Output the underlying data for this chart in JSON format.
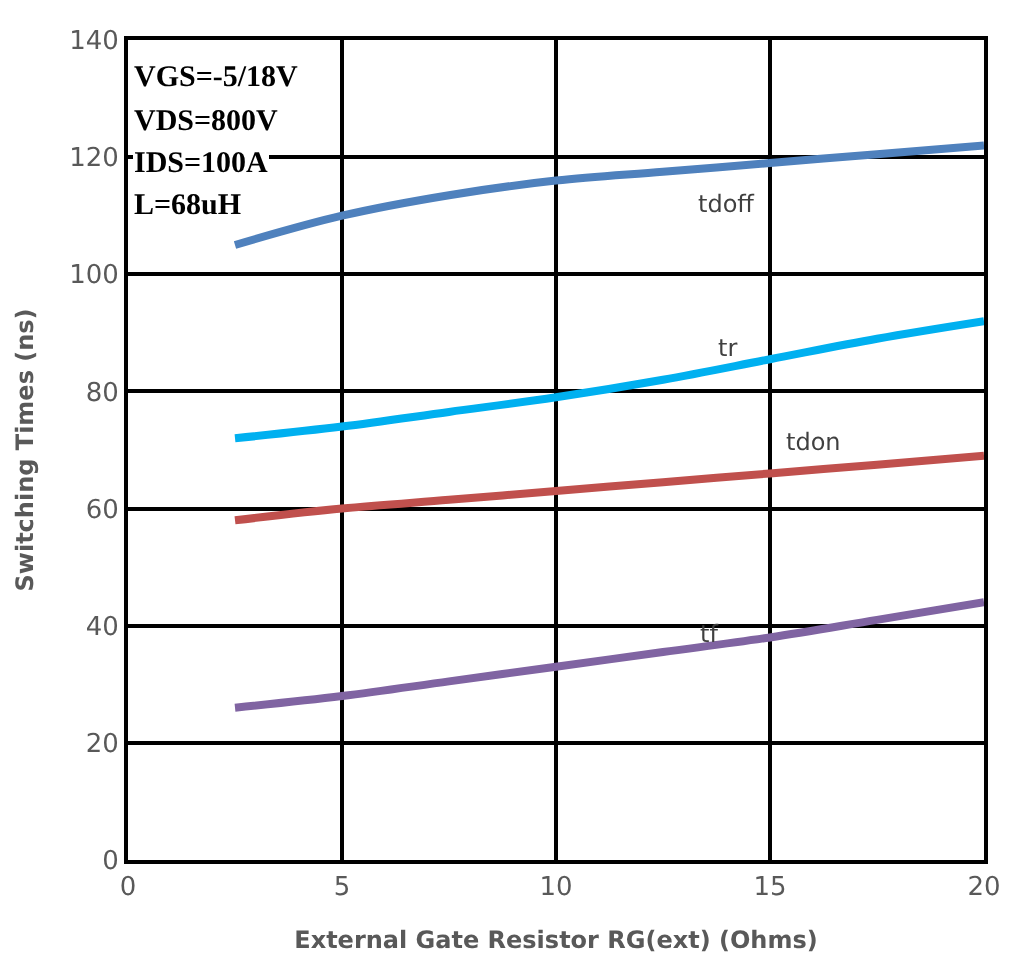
{
  "chart_data": {
    "type": "line",
    "xlabel": "External Gate Resistor RG(ext) (Ohms)",
    "ylabel": "Switching Times (ns)",
    "x": [
      2.5,
      5,
      7.5,
      10,
      12.5,
      15,
      17.5,
      20
    ],
    "series": [
      {
        "name": "tdoff",
        "color": "#4f81bd",
        "values": [
          105,
          110,
          113.5,
          116,
          117.5,
          119,
          120.5,
          122
        ]
      },
      {
        "name": "tr",
        "color": "#00b0f0",
        "values": [
          72,
          74,
          76.5,
          79,
          82,
          85.5,
          89,
          92
        ]
      },
      {
        "name": "tdon",
        "color": "#c0504d",
        "values": [
          58,
          60,
          61.5,
          63,
          64.5,
          66,
          67.5,
          69
        ]
      },
      {
        "name": "tf",
        "color": "#8064a2",
        "values": [
          26,
          28,
          30.5,
          33,
          35.5,
          38,
          41,
          44
        ]
      }
    ],
    "annotations": [
      "VGS=-5/18V",
      "VDS=800V",
      "IDS=100A",
      "L=68uH"
    ],
    "xlim": [
      0,
      20
    ],
    "xticks": [
      0,
      5,
      10,
      15,
      20
    ],
    "ylim": [
      0,
      140
    ],
    "yticks": [
      0,
      20,
      40,
      60,
      80,
      100,
      120,
      140
    ],
    "grid": true,
    "legend": false,
    "marker": "none",
    "line_style": "solid"
  }
}
